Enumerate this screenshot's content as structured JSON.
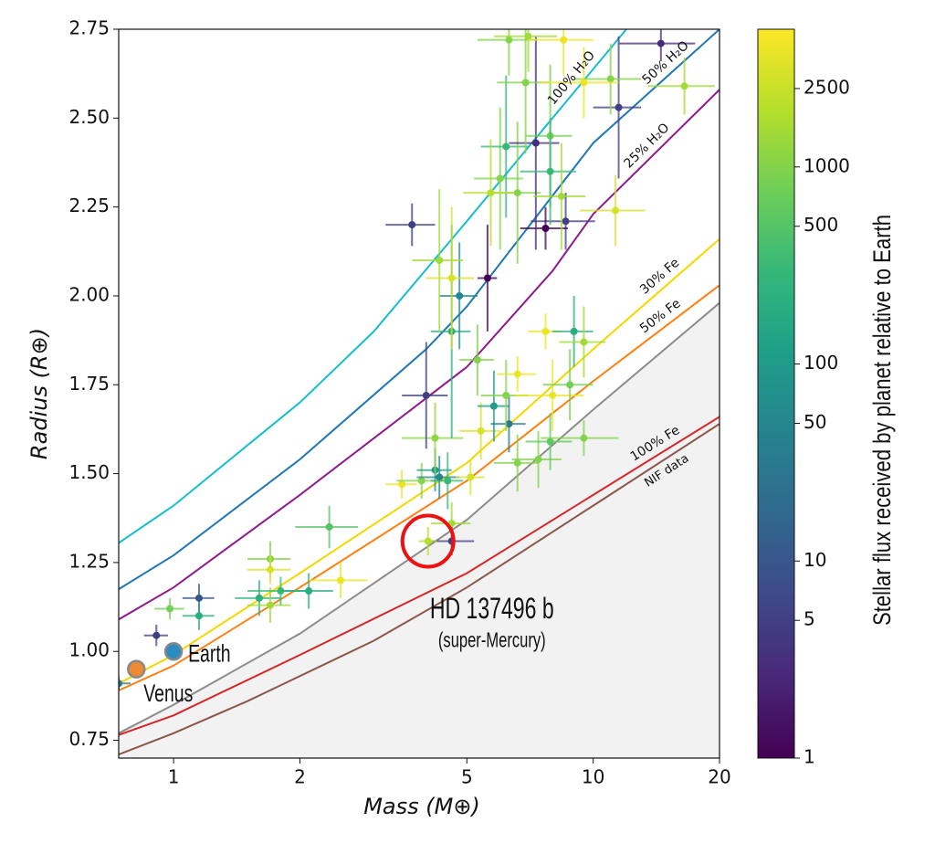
{
  "chart_data": {
    "type": "scatter",
    "x_label": "Mass (M⊕)",
    "y_label": "Radius (R⊕)",
    "x_log": true,
    "xlim": [
      0.74,
      20
    ],
    "xticks": [
      1,
      2,
      5,
      10,
      20
    ],
    "ylim": [
      0.7,
      2.75
    ],
    "yticks": [
      0.75,
      {
        "value": 1.0,
        "label": "1.00"
      },
      1.25,
      {
        "value": 1.5,
        "label": "1.50"
      },
      1.75,
      {
        "value": 2.0,
        "label": "2.00"
      },
      2.25,
      {
        "value": 2.5,
        "label": "2.50"
      },
      2.75
    ],
    "colorbar": {
      "label": "Stellar flux received by planet relative to Earth",
      "log": true,
      "lim": [
        1,
        5000
      ],
      "ticks": [
        1,
        5,
        10,
        50,
        100,
        500,
        1000,
        2500
      ],
      "colormap": [
        "#440154",
        "#482878",
        "#3e4989",
        "#31688e",
        "#26828e",
        "#1f9e89",
        "#35b779",
        "#6ece58",
        "#b5de2b",
        "#fde725"
      ]
    },
    "curves": [
      {
        "name": "100% H₂O",
        "color": "#17becf",
        "mass": [
          0.74,
          1,
          2,
          3,
          5,
          8,
          12
        ],
        "radius": [
          1.305,
          1.41,
          1.7,
          1.9,
          2.21,
          2.5,
          2.75
        ]
      },
      {
        "name": "50% H₂O",
        "color": "#1f77b4",
        "mass": [
          0.74,
          1,
          2,
          4,
          5,
          10,
          20
        ],
        "radius": [
          1.175,
          1.27,
          1.54,
          1.85,
          1.97,
          2.43,
          2.75
        ]
      },
      {
        "name": "25% H₂O",
        "color": "#8e1a8e",
        "mass": [
          0.74,
          1,
          2,
          5,
          8,
          10,
          20
        ],
        "radius": [
          1.09,
          1.18,
          1.44,
          1.8,
          2.07,
          2.23,
          2.58
        ]
      },
      {
        "name": "30% Fe",
        "color": "#f5d800",
        "mass": [
          0.74,
          1,
          2,
          5,
          10,
          20
        ],
        "radius": [
          0.91,
          0.99,
          1.22,
          1.53,
          1.85,
          2.16
        ]
      },
      {
        "name": "50% Fe",
        "color": "#ff7f0e",
        "mass": [
          0.74,
          1,
          2,
          5,
          10,
          20
        ],
        "radius": [
          0.89,
          0.96,
          1.18,
          1.48,
          1.76,
          2.03
        ]
      },
      {
        "name": null,
        "color": "#8c8c8c",
        "fill": "#f2f2f2",
        "mass": [
          0.74,
          1,
          2,
          5,
          10,
          20
        ],
        "radius": [
          0.77,
          0.85,
          1.05,
          1.37,
          1.68,
          1.98
        ]
      },
      {
        "name": "100% Fe",
        "color": "#d62728",
        "mass": [
          0.74,
          1,
          2,
          5,
          10,
          20
        ],
        "radius": [
          0.765,
          0.82,
          0.99,
          1.22,
          1.44,
          1.66
        ]
      },
      {
        "name": "NIF data",
        "color": "#8c564b",
        "mass": [
          0.74,
          1,
          1.5,
          3,
          5,
          10,
          20
        ],
        "radius": [
          0.71,
          0.77,
          0.86,
          1.03,
          1.18,
          1.41,
          1.64
        ]
      }
    ],
    "points": {
      "mass": [
        0.74,
        0.91,
        0.98,
        1.15,
        1.15,
        1.6,
        1.7,
        1.8,
        2.1,
        1.7,
        1.7,
        2.35,
        2.5,
        3.5,
        3.9,
        4.2,
        4.3,
        4.2,
        4.5,
        4.6,
        4.6,
        5.1,
        4.0,
        4.6,
        4.8,
        4.3,
        4.6,
        3.7,
        5.3,
        5.4,
        5.8,
        6.3,
        6.2,
        6.6,
        6.6,
        7.4,
        7.9,
        8.0,
        7.7,
        9.0,
        9.5,
        9.5,
        8.8,
        8.6,
        7.7,
        5.6,
        6.0,
        6.2,
        6.6,
        7.3,
        7.9,
        7.9,
        8.4,
        6.9,
        6.3,
        7.0,
        8.5,
        14.5,
        11.5,
        11.0,
        16.5,
        11.3,
        9.5,
        5.7
      ],
      "radius": [
        0.91,
        1.045,
        1.12,
        1.15,
        1.1,
        1.15,
        1.13,
        1.17,
        1.17,
        1.26,
        1.23,
        1.35,
        1.2,
        1.47,
        1.48,
        1.51,
        1.49,
        1.6,
        1.48,
        1.36,
        1.31,
        1.49,
        1.72,
        1.9,
        2.0,
        2.1,
        2.05,
        2.2,
        1.82,
        1.62,
        1.69,
        1.64,
        1.72,
        1.78,
        1.53,
        1.54,
        1.59,
        1.72,
        1.9,
        1.9,
        1.87,
        1.6,
        1.75,
        2.21,
        2.19,
        2.05,
        2.33,
        2.42,
        2.29,
        2.43,
        2.45,
        2.35,
        2.28,
        2.6,
        2.72,
        2.73,
        2.72,
        2.71,
        2.53,
        2.61,
        2.59,
        2.24,
        2.6,
        2.29
      ],
      "mass_err": [
        0.05,
        0.06,
        0.08,
        0.1,
        0.1,
        0.2,
        0.2,
        0.3,
        0.3,
        0.2,
        0.2,
        0.4,
        0.4,
        0.3,
        0.5,
        0.4,
        0.5,
        0.7,
        0.4,
        0.5,
        0.6,
        0.4,
        0.5,
        0.5,
        0.5,
        0.6,
        0.6,
        0.5,
        0.5,
        0.6,
        0.5,
        0.6,
        0.8,
        0.7,
        0.8,
        1.0,
        1.0,
        1.5,
        0.7,
        1.0,
        1.2,
        2.0,
        1.2,
        1.5,
        1.0,
        0.3,
        0.8,
        0.8,
        0.9,
        1.0,
        1.0,
        1.2,
        1.2,
        1.0,
        1.0,
        1.2,
        1.5,
        3.0,
        1.5,
        2.0,
        3.0,
        2.0,
        2.0,
        0.8
      ],
      "radius_err": [
        0.02,
        0.03,
        0.03,
        0.04,
        0.04,
        0.05,
        0.05,
        0.04,
        0.05,
        0.05,
        0.04,
        0.06,
        0.05,
        0.04,
        0.05,
        0.06,
        0.06,
        0.1,
        0.08,
        0.06,
        0.04,
        0.05,
        0.15,
        0.3,
        0.15,
        0.2,
        0.2,
        0.06,
        0.1,
        0.08,
        0.1,
        0.08,
        0.1,
        0.05,
        0.08,
        0.08,
        0.08,
        0.1,
        0.05,
        0.1,
        0.1,
        0.05,
        0.1,
        0.08,
        0.06,
        0.15,
        0.2,
        0.2,
        0.2,
        0.3,
        0.2,
        0.15,
        0.15,
        0.2,
        0.1,
        0.1,
        0.1,
        0.05,
        0.2,
        0.1,
        0.08,
        0.1,
        0.1,
        0.15
      ],
      "flux": [
        30,
        5,
        800,
        10,
        200,
        200,
        1500,
        300,
        200,
        1000,
        3000,
        500,
        4000,
        4000,
        1000,
        100,
        50,
        1200,
        300,
        1500,
        5,
        3000,
        5,
        200,
        50,
        1500,
        3000,
        5,
        1000,
        3000,
        100,
        30,
        1000,
        4000,
        1000,
        1000,
        600,
        4000,
        4000,
        200,
        1500,
        1000,
        800,
        5,
        1,
        1,
        1000,
        300,
        1000,
        3,
        800,
        300,
        1500,
        1000,
        1000,
        1500,
        4000,
        3,
        5,
        1000,
        1500,
        3000,
        4000,
        2000
      ]
    },
    "annotations": [
      {
        "label": "Earth",
        "mass": 1.0,
        "radius": 1.0,
        "color": "#2b8cc4"
      },
      {
        "label": "Venus",
        "mass": 0.815,
        "radius": 0.95,
        "color": "#ee8a35"
      },
      {
        "label": "HD 137496 b",
        "sublabel": "(super-Mercury)",
        "mass": 4.04,
        "radius": 1.31,
        "radius_err": 0.04,
        "mass_err": 0.2,
        "flux": 2000,
        "color": "#ee1111"
      }
    ]
  }
}
